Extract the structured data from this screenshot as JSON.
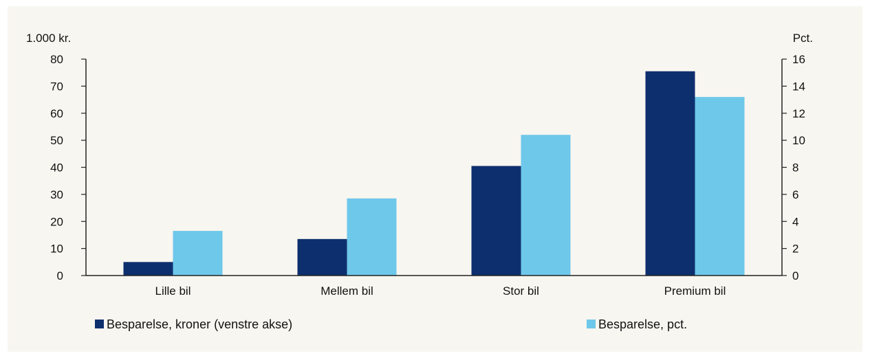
{
  "chart_data": {
    "type": "bar",
    "left_axis_unit": "1.000 kr.",
    "right_axis_unit": "Pct.",
    "categories": [
      "Lille bil",
      "Mellem bil",
      "Stor bil",
      "Premium bil"
    ],
    "series": [
      {
        "name": "Besparelse, kroner (venstre akse)",
        "axis": "left",
        "color": "#0e2f6e",
        "values": [
          5,
          13.5,
          40.5,
          75.5
        ]
      },
      {
        "name": "Besparelse, pct.",
        "axis": "right",
        "color": "#6ec8ea",
        "values": [
          3.3,
          5.7,
          10.4,
          13.2
        ]
      }
    ],
    "left_ylim": [
      0,
      80
    ],
    "left_ticks": [
      0,
      10,
      20,
      30,
      40,
      50,
      60,
      70,
      80
    ],
    "right_ylim": [
      0,
      16
    ],
    "right_ticks": [
      0,
      2,
      4,
      6,
      8,
      10,
      12,
      14,
      16
    ],
    "grid": false,
    "legend_position": "bottom"
  }
}
